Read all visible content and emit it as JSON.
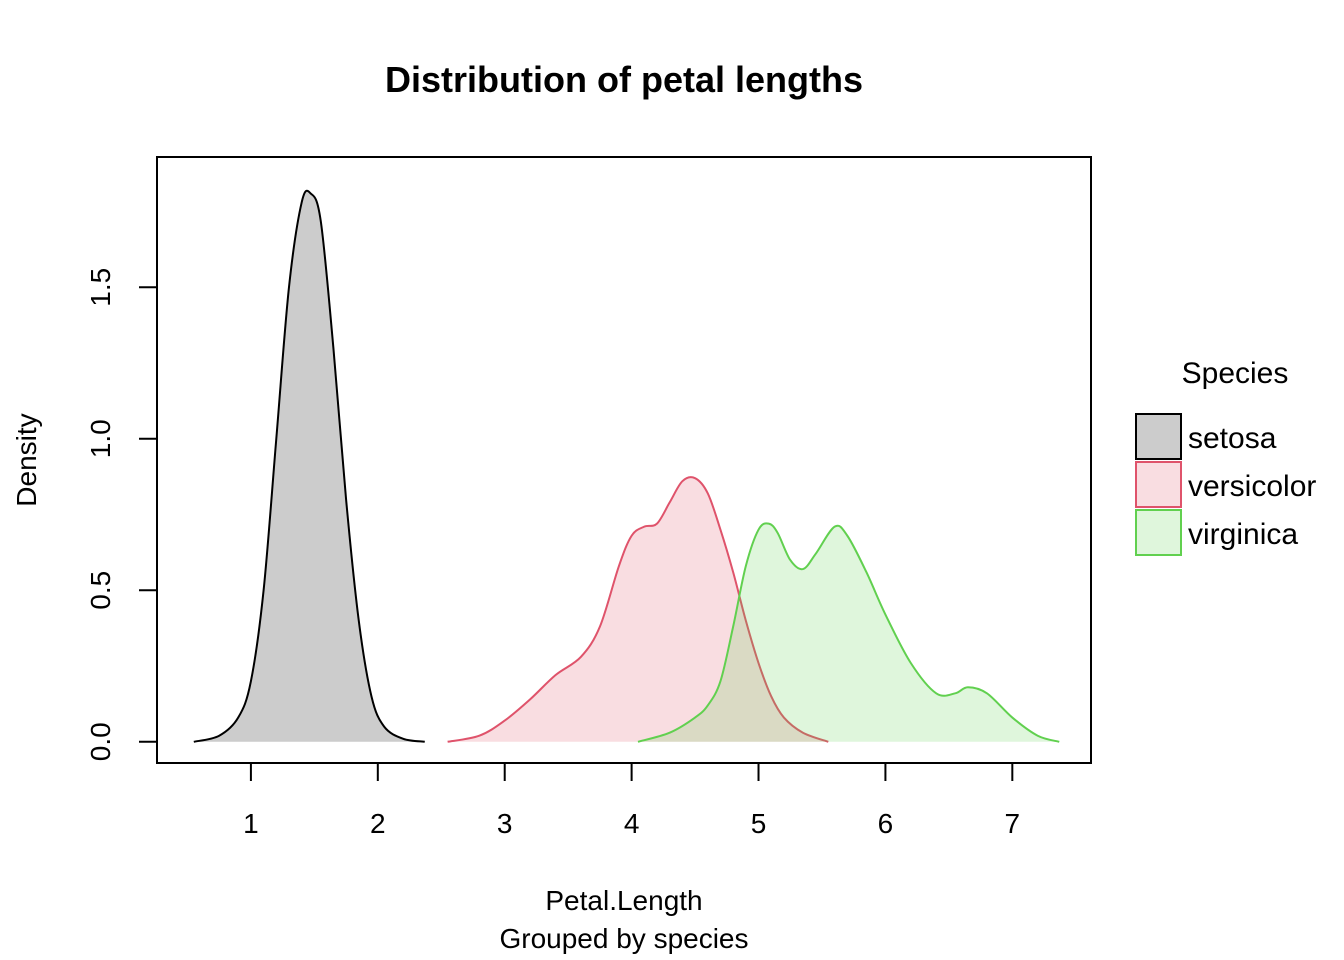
{
  "chart_data": {
    "type": "area",
    "title": "Distribution of petal lengths",
    "xlabel": "Petal.Length",
    "subtitle": "Grouped by species",
    "ylabel": "Density",
    "xlim": [
      0.26,
      7.62
    ],
    "ylim": [
      -0.07,
      1.93
    ],
    "x_ticks": [
      "1",
      "2",
      "3",
      "4",
      "5",
      "6",
      "7"
    ],
    "y_ticks": [
      "0.0",
      "0.5",
      "1.0",
      "1.5"
    ],
    "grid": false,
    "legend": {
      "title": "Species",
      "position": "right"
    },
    "series": [
      {
        "name": "setosa",
        "stroke": "#000000",
        "fill": "#cccccc",
        "fill_opacity": 1,
        "x": [
          0.55,
          0.75,
          0.9,
          1.0,
          1.1,
          1.2,
          1.3,
          1.4,
          1.47,
          1.55,
          1.65,
          1.75,
          1.85,
          1.95,
          2.05,
          2.2,
          2.37
        ],
        "y": [
          0.0,
          0.02,
          0.08,
          0.2,
          0.5,
          1.0,
          1.5,
          1.78,
          1.81,
          1.72,
          1.3,
          0.8,
          0.4,
          0.15,
          0.05,
          0.01,
          0.0
        ]
      },
      {
        "name": "versicolor",
        "stroke": "#df536b",
        "fill": "#df536b",
        "fill_opacity": 0.2,
        "x": [
          2.55,
          2.8,
          3.0,
          3.2,
          3.4,
          3.6,
          3.75,
          3.9,
          4.0,
          4.1,
          4.2,
          4.3,
          4.4,
          4.5,
          4.6,
          4.7,
          4.8,
          4.9,
          5.0,
          5.1,
          5.2,
          5.35,
          5.55
        ],
        "y": [
          0.0,
          0.02,
          0.07,
          0.14,
          0.22,
          0.28,
          0.38,
          0.58,
          0.68,
          0.71,
          0.72,
          0.79,
          0.86,
          0.87,
          0.82,
          0.7,
          0.56,
          0.4,
          0.26,
          0.15,
          0.08,
          0.03,
          0.0
        ]
      },
      {
        "name": "virginica",
        "stroke": "#61d04f",
        "fill": "#61d04f",
        "fill_opacity": 0.2,
        "x": [
          4.05,
          4.3,
          4.5,
          4.6,
          4.7,
          4.8,
          4.9,
          5.0,
          5.08,
          5.15,
          5.25,
          5.35,
          5.45,
          5.6,
          5.7,
          5.85,
          6.0,
          6.2,
          6.4,
          6.55,
          6.65,
          6.8,
          7.0,
          7.2,
          7.37
        ],
        "y": [
          0.0,
          0.03,
          0.08,
          0.12,
          0.2,
          0.38,
          0.58,
          0.7,
          0.72,
          0.69,
          0.6,
          0.57,
          0.62,
          0.71,
          0.68,
          0.56,
          0.42,
          0.26,
          0.16,
          0.16,
          0.18,
          0.16,
          0.08,
          0.02,
          0.0
        ]
      }
    ]
  }
}
